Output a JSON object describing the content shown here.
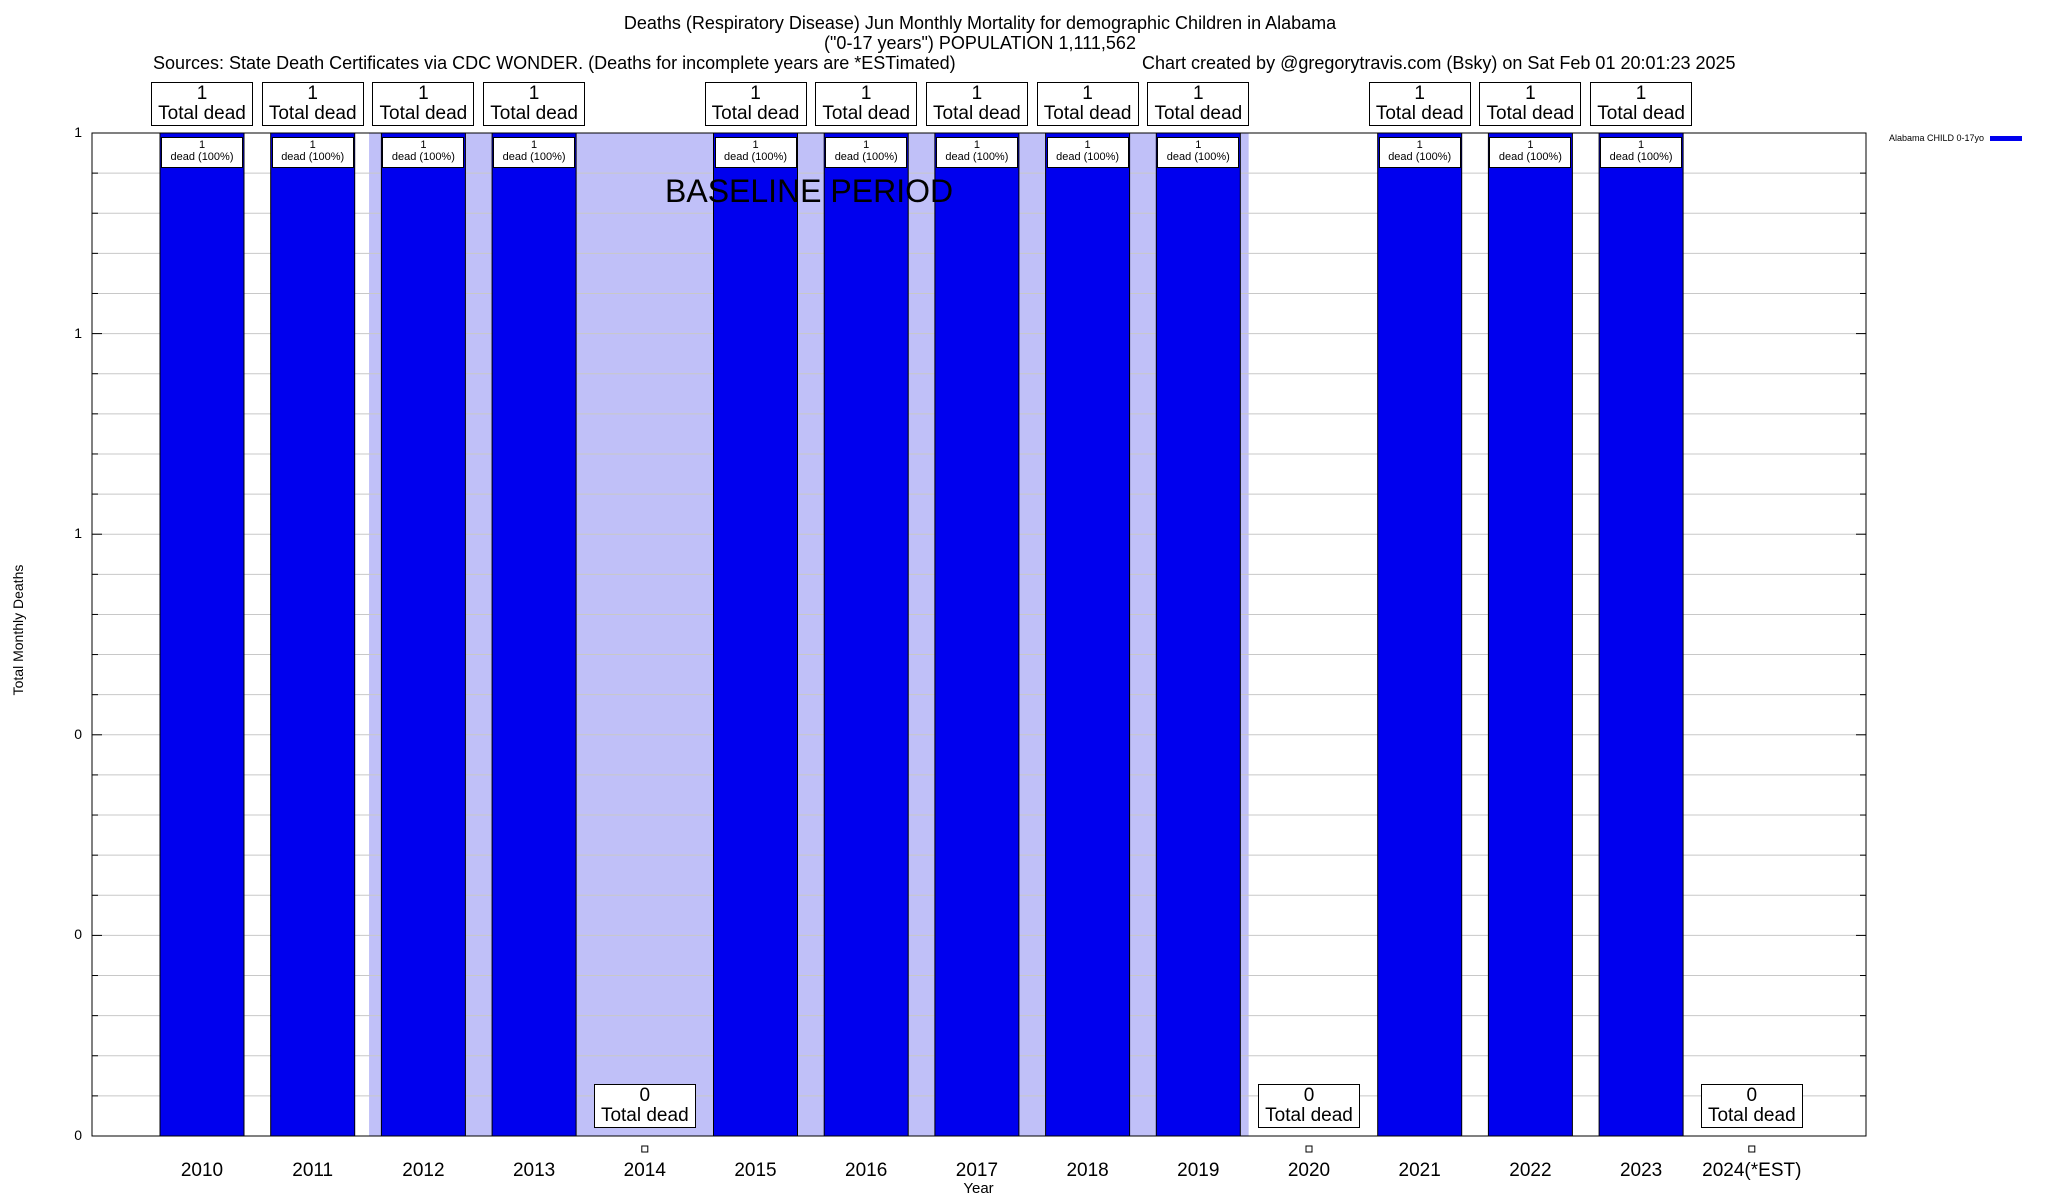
{
  "title_line1": "Deaths (Respiratory Disease) Jun Monthly Mortality for demographic Children in Alabama",
  "title_line2": "(\"0-17 years\") POPULATION 1,111,562",
  "sources": "Sources: State Death Certificates via CDC WONDER. (Deaths for incomplete years are *ESTimated)",
  "credit": "Chart created by @gregorytravis.com (Bsky) on Sat Feb 01 20:01:23 2025",
  "chart_data": {
    "type": "bar",
    "xlabel": "Year",
    "ylabel": "Total Monthly Deaths",
    "ylim": [
      0,
      1
    ],
    "y_tick_labels": [
      "0",
      "0",
      "0",
      "1",
      "1",
      "1"
    ],
    "categories": [
      "2010",
      "2011",
      "2012",
      "2013",
      "2014",
      "2015",
      "2016",
      "2017",
      "2018",
      "2019",
      "2020",
      "2021",
      "2022",
      "2023",
      "2024(*EST)"
    ],
    "series": [
      {
        "name": "Alabama CHILD 0-17yo",
        "color": "#0000ee",
        "values": [
          1,
          1,
          1,
          1,
          0,
          1,
          1,
          1,
          1,
          1,
          0,
          1,
          1,
          1,
          0
        ]
      }
    ],
    "total_labels": [
      "1",
      "1",
      "1",
      "1",
      "0",
      "1",
      "1",
      "1",
      "1",
      "1",
      "0",
      "1",
      "1",
      "1",
      "0"
    ],
    "total_suffix": "Total dead",
    "bar_labels": [
      "1",
      "1",
      "1",
      "1",
      "",
      "1",
      "1",
      "1",
      "1",
      "1",
      "",
      "1",
      "1",
      "1",
      ""
    ],
    "bar_label_suffix": "dead (100%)",
    "baseline": {
      "label": "BASELINE PERIOD",
      "start": "2012",
      "end": "2019",
      "color": "#c0c0f8"
    },
    "grid": true,
    "legend_position": "top-right"
  }
}
